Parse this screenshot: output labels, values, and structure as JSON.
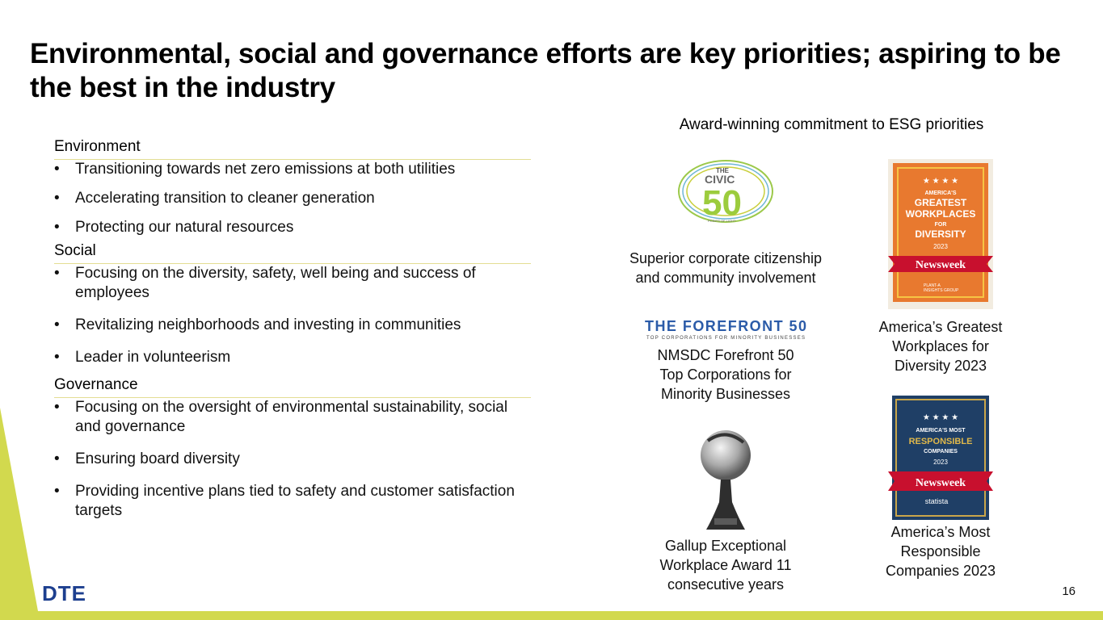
{
  "slide": {
    "title": "Environmental, social and governance efforts are key priorities; aspiring to be the best in the industry",
    "page_number": "16",
    "brand_logo": "DTE",
    "accent_color": "#d2d94e"
  },
  "sections": {
    "environment": {
      "heading": "Environment",
      "items": [
        "Transitioning towards net zero emissions at both utilities",
        "Accelerating transition to cleaner generation",
        "Protecting our natural resources"
      ]
    },
    "social": {
      "heading": "Social",
      "items": [
        "Focusing on the diversity, safety, well being and success of employees",
        "Revitalizing neighborhoods and investing in communities",
        "Leader in volunteerism"
      ]
    },
    "governance": {
      "heading": "Governance",
      "items": [
        "Focusing on the oversight of environmental sustainability, social and governance",
        "Ensuring board diversity",
        "Providing incentive plans tied to safety and customer satisfaction targets"
      ]
    }
  },
  "awards": {
    "heading": "Award-winning commitment to ESG priorities",
    "items": [
      {
        "logo": "civic-50-logo",
        "logo_text": [
          "THE",
          "CIVIC",
          "50",
          "POINTS OF LIGHT"
        ],
        "caption_lines": [
          "Superior corporate citizenship",
          "and community involvement"
        ]
      },
      {
        "logo": "forefront-50-logo",
        "logo_text": [
          "THE FOREFRONT 50",
          "TOP CORPORATIONS FOR MINORITY BUSINESSES"
        ],
        "caption_lines": [
          "NMSDC Forefront 50",
          "Top Corporations for",
          "Minority Businesses"
        ]
      },
      {
        "logo": "gallup-trophy",
        "caption_lines": [
          "Gallup Exceptional",
          "Workplace Award 11",
          "consecutive years"
        ]
      },
      {
        "logo": "newsweek-diversity-badge",
        "logo_text": [
          "AMERICA'S",
          "GREATEST",
          "WORKPLACES",
          "FOR",
          "DIVERSITY",
          "2023",
          "Newsweek",
          "PLANT-A",
          "INSIGHTS GROUP"
        ],
        "caption_lines": [
          "America’s Greatest",
          "Workplaces for",
          "Diversity 2023"
        ]
      },
      {
        "logo": "newsweek-responsible-badge",
        "logo_text": [
          "AMERICA'S MOST",
          "RESPONSIBLE",
          "COMPANIES",
          "2023",
          "Newsweek",
          "statista"
        ],
        "caption_lines": [
          "America’s Most",
          "Responsible",
          "Companies 2023"
        ]
      }
    ]
  }
}
